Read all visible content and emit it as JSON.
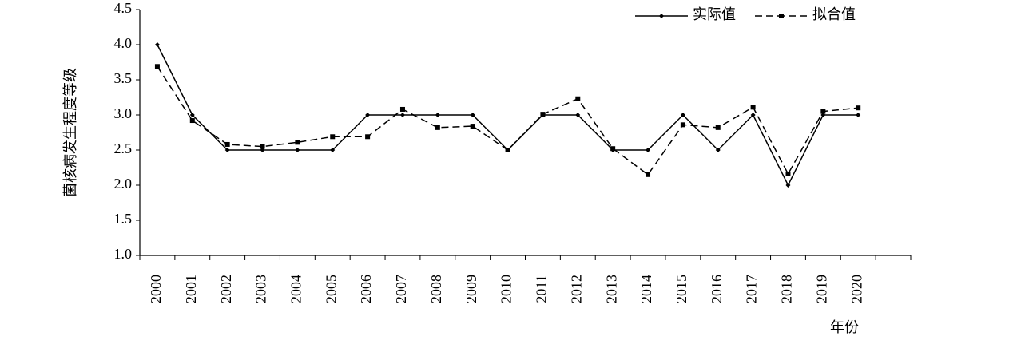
{
  "chart_data": {
    "type": "line",
    "x_label": "年份",
    "y_label": "菌核病发生程度等级",
    "categories": [
      "2000",
      "2001",
      "2002",
      "2003",
      "2004",
      "2005",
      "2006",
      "2007",
      "2008",
      "2009",
      "2010",
      "2011",
      "2012",
      "2013",
      "2014",
      "2015",
      "2016",
      "2017",
      "2018",
      "2019",
      "2020",
      null
    ],
    "series": [
      {
        "name": "实际值",
        "color": "#000000",
        "line_style": "solid",
        "marker": "diamond",
        "values": [
          4,
          3,
          2.5,
          2.5,
          2.5,
          2.5,
          3,
          3,
          3,
          3,
          2.5,
          3,
          3,
          2.5,
          2.5,
          3,
          2.5,
          3,
          2,
          3,
          3,
          null
        ]
      },
      {
        "name": "拟合值",
        "color": "#000000",
        "line_style": "dashed",
        "marker": "square",
        "values": [
          3.69,
          2.92,
          2.58,
          2.55,
          2.61,
          2.69,
          2.69,
          3.08,
          2.82,
          2.84,
          2.5,
          3.01,
          3.23,
          2.52,
          2.15,
          2.86,
          2.82,
          3.11,
          2.16,
          3.05,
          3.1,
          null
        ]
      }
    ],
    "ylim": [
      1,
      4.5
    ],
    "yticks": [
      {
        "value": 1,
        "label": "1.0"
      },
      1.5,
      {
        "value": 2,
        "label": "2.0"
      },
      2.5,
      {
        "value": 3,
        "label": "3.0"
      },
      3.5,
      {
        "value": 4,
        "label": "4.0"
      },
      4.5
    ],
    "grid": false,
    "legend": "top-right"
  }
}
